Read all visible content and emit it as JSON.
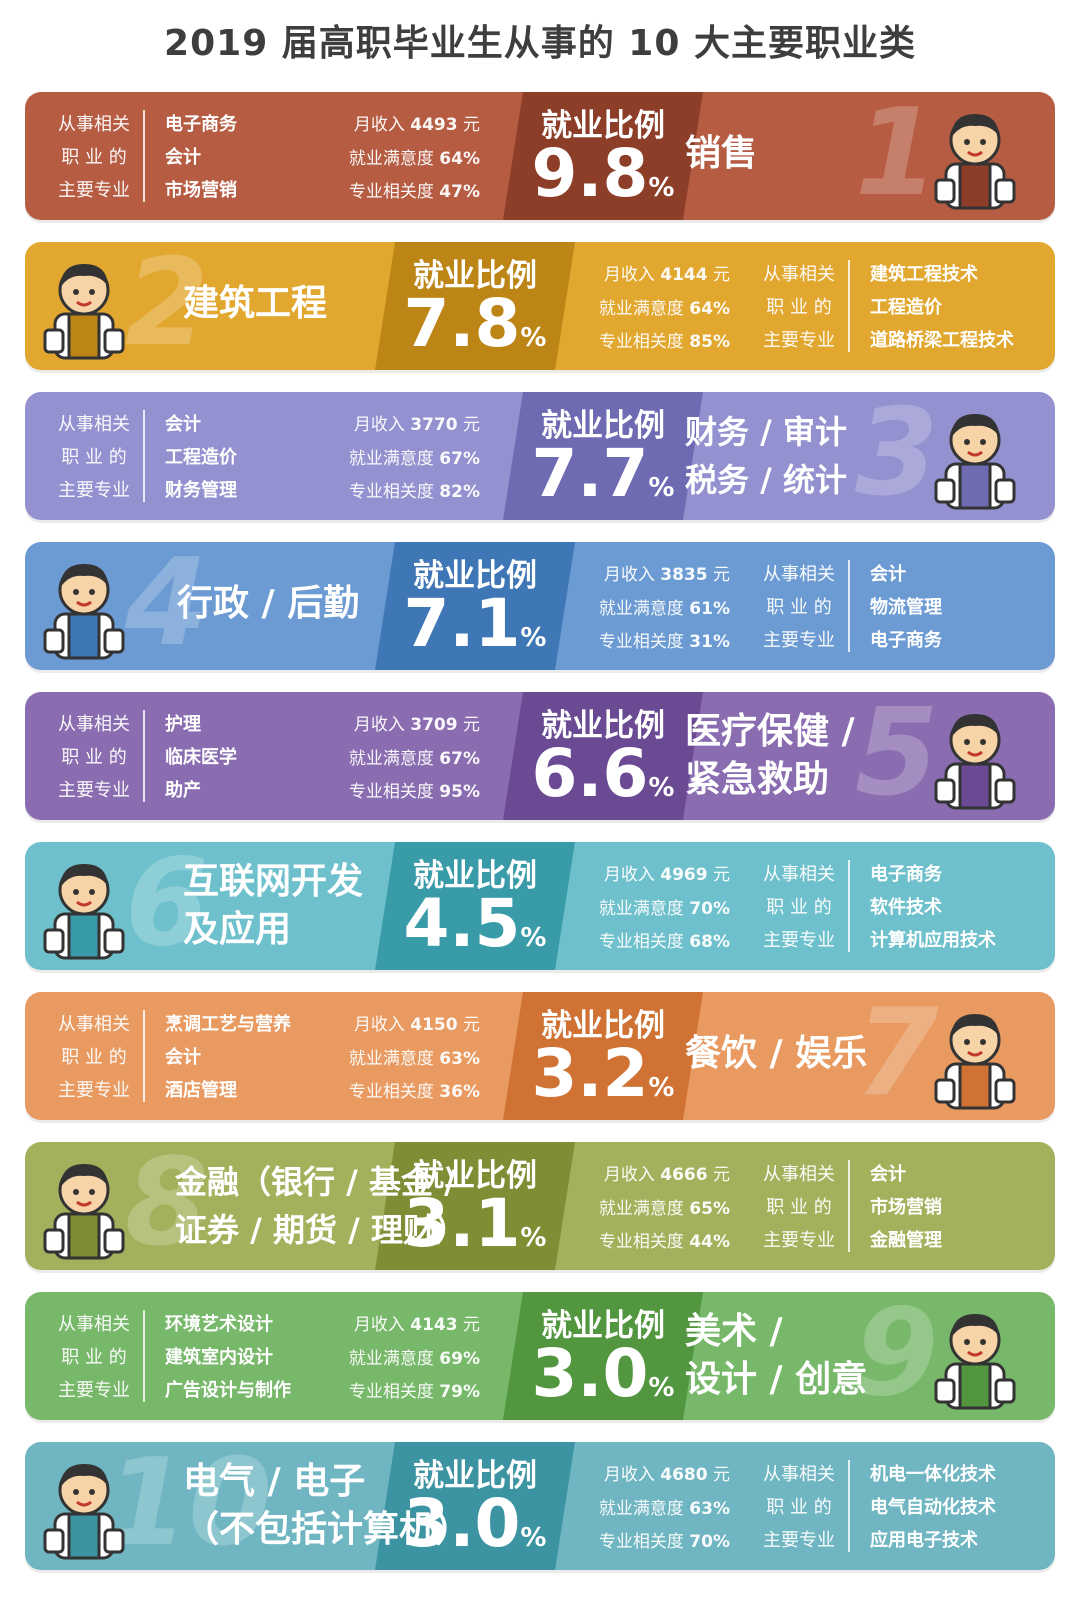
{
  "title": "2019 届高职毕业生从事的 10 大主要职业类",
  "labels": {
    "related": [
      "从事相关",
      "职 业 的",
      "主要专业"
    ],
    "ratio": "就业比例",
    "income_prefix": "月收入",
    "income_unit": "元",
    "satisfaction": "就业满意度",
    "relevance": "专业相关度",
    "pct": "%"
  },
  "occupations": [
    {
      "rank": "1",
      "job_lines": [
        "销售"
      ],
      "ratio": "9.8",
      "income": "4493",
      "satisfaction": "64%",
      "relevance": "47%",
      "majors": [
        "电子商务",
        "会计",
        "市场营销"
      ],
      "color": "#b65c42",
      "dark": "#8c3e28",
      "layout": "A"
    },
    {
      "rank": "2",
      "job_lines": [
        "建筑工程"
      ],
      "ratio": "7.8",
      "income": "4144",
      "satisfaction": "64%",
      "relevance": "85%",
      "majors": [
        "建筑工程技术",
        "工程造价",
        "道路桥梁工程技术"
      ],
      "color": "#e2a72e",
      "dark": "#bd8416",
      "layout": "B"
    },
    {
      "rank": "3",
      "job_lines": [
        "财务 / 审计",
        "税务 / 统计"
      ],
      "ratio": "7.7",
      "income": "3770",
      "satisfaction": "67%",
      "relevance": "82%",
      "majors": [
        "会计",
        "工程造价",
        "财务管理"
      ],
      "color": "#9391cf",
      "dark": "#6e6bb3",
      "layout": "A"
    },
    {
      "rank": "4",
      "job_lines": [
        "行政 / 后勤"
      ],
      "ratio": "7.1",
      "income": "3835",
      "satisfaction": "61%",
      "relevance": "31%",
      "majors": [
        "会计",
        "物流管理",
        "电子商务"
      ],
      "color": "#6b9bd2",
      "dark": "#3f76b5",
      "layout": "B"
    },
    {
      "rank": "5",
      "job_lines": [
        "医疗保健 /",
        "紧急救助"
      ],
      "ratio": "6.6",
      "income": "3709",
      "satisfaction": "67%",
      "relevance": "95%",
      "majors": [
        "护理",
        "临床医学",
        "助产"
      ],
      "color": "#8a6db0",
      "dark": "#6a4a93",
      "layout": "A"
    },
    {
      "rank": "6",
      "job_lines": [
        "互联网开发",
        "及应用"
      ],
      "ratio": "4.5",
      "income": "4969",
      "satisfaction": "70%",
      "relevance": "68%",
      "majors": [
        "电子商务",
        "软件技术",
        "计算机应用技术"
      ],
      "color": "#6ec1cc",
      "dark": "#3a9ba8",
      "layout": "B"
    },
    {
      "rank": "7",
      "job_lines": [
        "餐饮 / 娱乐"
      ],
      "ratio": "3.2",
      "income": "4150",
      "satisfaction": "63%",
      "relevance": "36%",
      "majors": [
        "烹调工艺与营养",
        "会计",
        "酒店管理"
      ],
      "color": "#e89a60",
      "dark": "#cf7233",
      "layout": "A"
    },
    {
      "rank": "8",
      "job_lines": [
        "金融（银行 / 基金 /",
        "证券 / 期货 / 理财）"
      ],
      "ratio": "3.1",
      "income": "4666",
      "satisfaction": "65%",
      "relevance": "44%",
      "majors": [
        "会计",
        "市场营销",
        "金融管理"
      ],
      "color": "#a4b15c",
      "dark": "#7f8d35",
      "layout": "B"
    },
    {
      "rank": "9",
      "job_lines": [
        "美术 /",
        "设计 / 创意"
      ],
      "ratio": "3.0",
      "income": "4143",
      "satisfaction": "69%",
      "relevance": "79%",
      "majors": [
        "环境艺术设计",
        "建筑室内设计",
        "广告设计与制作"
      ],
      "color": "#78b86a",
      "dark": "#52963f",
      "layout": "A"
    },
    {
      "rank": "10",
      "job_lines": [
        "电气 / 电子",
        "（不包括计算机）"
      ],
      "ratio": "3.0",
      "income": "4680",
      "satisfaction": "63%",
      "relevance": "70%",
      "majors": [
        "机电一体化技术",
        "电气自动化技术",
        "应用电子技术"
      ],
      "color": "#6fb6c2",
      "dark": "#3c93a2",
      "layout": "B"
    }
  ]
}
